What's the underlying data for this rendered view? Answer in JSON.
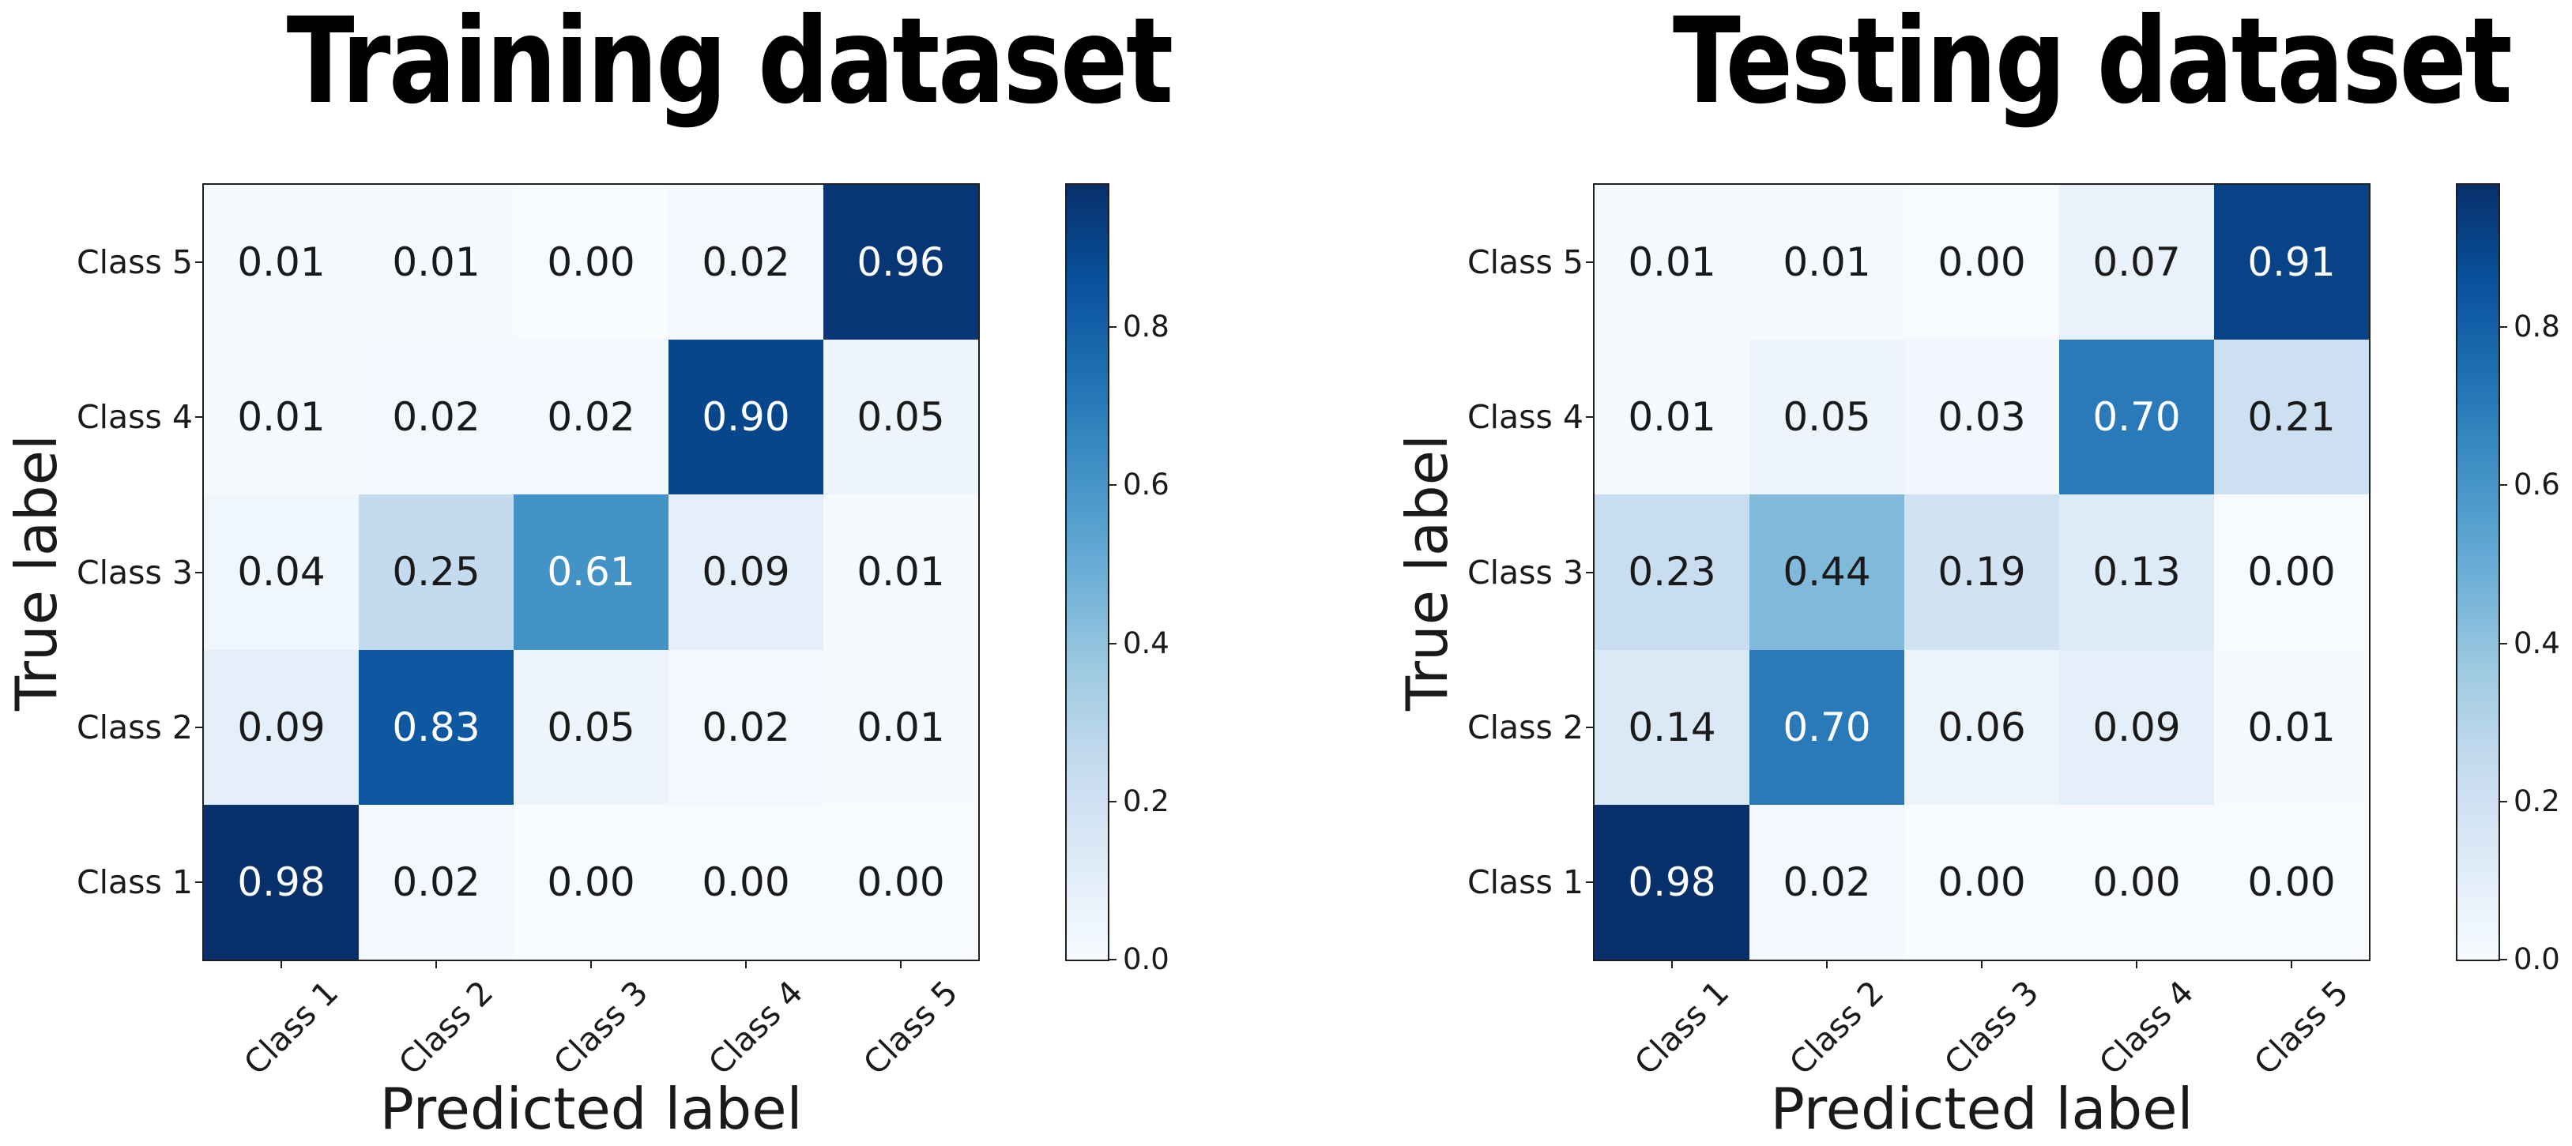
{
  "chart_data": [
    {
      "type": "heatmap",
      "title": "Training dataset",
      "xlabel": "Predicted label",
      "ylabel": "True label",
      "x_labels": [
        "Class 1",
        "Class 2",
        "Class 3",
        "Class 4",
        "Class 5"
      ],
      "y_labels_top_to_bottom": [
        "Class 5",
        "Class 4",
        "Class 3",
        "Class 2",
        "Class 1"
      ],
      "rows": [
        [
          0.01,
          0.01,
          0.0,
          0.02,
          0.96
        ],
        [
          0.01,
          0.02,
          0.02,
          0.9,
          0.05
        ],
        [
          0.04,
          0.25,
          0.61,
          0.09,
          0.01
        ],
        [
          0.09,
          0.83,
          0.05,
          0.02,
          0.01
        ],
        [
          0.98,
          0.02,
          0.0,
          0.0,
          0.0
        ]
      ],
      "value_format_decimals": 2,
      "vmin": 0.0,
      "vmax": 0.98,
      "colormap": "Blues",
      "colorbar_ticks": [
        0.0,
        0.2,
        0.4,
        0.6,
        0.8
      ],
      "colorbar_position": "right",
      "grid": false
    },
    {
      "type": "heatmap",
      "title": "Testing dataset",
      "xlabel": "Predicted label",
      "ylabel": "True label",
      "x_labels": [
        "Class 1",
        "Class 2",
        "Class 3",
        "Class 4",
        "Class 5"
      ],
      "y_labels_top_to_bottom": [
        "Class 5",
        "Class 4",
        "Class 3",
        "Class 2",
        "Class 1"
      ],
      "rows": [
        [
          0.01,
          0.01,
          0.0,
          0.07,
          0.91
        ],
        [
          0.01,
          0.05,
          0.03,
          0.7,
          0.21
        ],
        [
          0.23,
          0.44,
          0.19,
          0.13,
          0.0
        ],
        [
          0.14,
          0.7,
          0.06,
          0.09,
          0.01
        ],
        [
          0.98,
          0.02,
          0.0,
          0.0,
          0.0
        ]
      ],
      "value_format_decimals": 2,
      "vmin": 0.0,
      "vmax": 0.98,
      "colormap": "Blues",
      "colorbar_ticks": [
        0.0,
        0.2,
        0.4,
        0.6,
        0.8
      ],
      "colorbar_position": "right",
      "grid": false
    }
  ],
  "styles": {
    "background": "#ffffff",
    "text_color": "#1a1a1a",
    "title_color": "#000000",
    "spine_color": "#1f1f1f",
    "cell_text_dark": "#1a1a1a",
    "cell_text_light": "#ffffff",
    "white_text_threshold": 0.49,
    "colormap_stops": [
      {
        "t": 0.0,
        "c": "#f7fbff"
      },
      {
        "t": 0.125,
        "c": "#deebf7"
      },
      {
        "t": 0.25,
        "c": "#c6dbef"
      },
      {
        "t": 0.375,
        "c": "#9ecae1"
      },
      {
        "t": 0.5,
        "c": "#6baed6"
      },
      {
        "t": 0.625,
        "c": "#4292c6"
      },
      {
        "t": 0.75,
        "c": "#2171b5"
      },
      {
        "t": 0.875,
        "c": "#08519c"
      },
      {
        "t": 1.0,
        "c": "#08306b"
      }
    ]
  }
}
